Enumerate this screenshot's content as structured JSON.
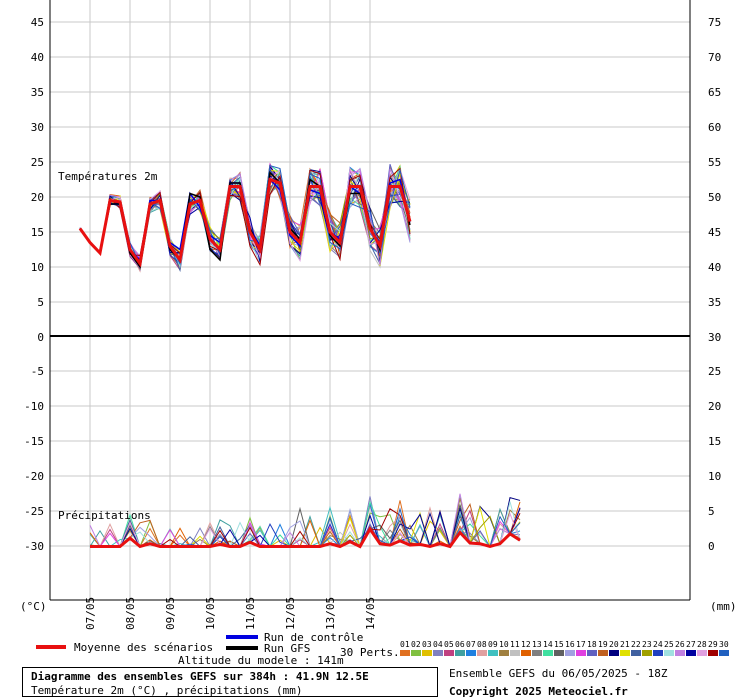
{
  "chart_data": {
    "type": "line",
    "panels": {
      "temperature": {
        "label": "Températures 2m",
        "left_ticks": [
          "45",
          "40",
          "35",
          "30",
          "25",
          "20",
          "15",
          "10",
          "5",
          "0"
        ],
        "right_ticks": [
          "75",
          "70",
          "65",
          "60",
          "55",
          "50",
          "45",
          "40",
          "35",
          "30"
        ],
        "ylim": [
          0,
          47
        ]
      },
      "precipitation": {
        "label": "Précipitations",
        "left_ticks": [
          "-5",
          "-10",
          "-15",
          "-20",
          "-25",
          "-30"
        ],
        "right_ticks": [
          "25",
          "20",
          "15",
          "10",
          "5",
          "0"
        ],
        "ylim": [
          -38,
          0
        ]
      }
    },
    "left_unit": "(°C)",
    "right_unit": "(mm)",
    "x_labels": [
      "07/05",
      "08/05",
      "09/05",
      "10/05",
      "11/05",
      "12/05",
      "13/05",
      "14/05"
    ],
    "x_hours_step": 6,
    "mean_temperature": [
      15.5,
      13.5,
      12,
      19.5,
      19.3,
      12.5,
      10.5,
      19,
      19.5,
      13,
      11,
      19,
      19.5,
      14,
      12.5,
      21.5,
      21.5,
      15,
      12.5,
      22.5,
      22,
      15,
      13.5,
      21.5,
      21.5,
      15,
      13.5,
      21.5,
      21.5,
      15.5,
      13,
      21.5,
      21.5,
      16.5
    ],
    "control_run": [
      15.5,
      13.5,
      12,
      19,
      19,
      12.5,
      11,
      19.5,
      19.5,
      13.5,
      12.5,
      20.5,
      18.5,
      14.5,
      13.5,
      22,
      22,
      15.5,
      13,
      22.5,
      21,
      14.5,
      13,
      21,
      20.5,
      15,
      14,
      21.5,
      20.5,
      15.5,
      13.5,
      22,
      22.5,
      16.5
    ],
    "gfs_run": [
      15.5,
      13.5,
      12,
      19,
      19,
      12,
      10,
      19,
      19.5,
      12.5,
      11,
      20.5,
      20,
      12.5,
      11,
      22,
      22,
      15.5,
      12.5,
      23.5,
      22,
      15.5,
      14,
      22.5,
      21.5,
      14.5,
      13,
      20.5,
      20.5,
      16,
      12.5,
      21.5,
      21.5,
      16
    ],
    "mean_precipitation_mm": [
      0,
      0,
      0,
      0,
      1.2,
      0,
      0.4,
      0,
      0,
      0,
      0,
      0,
      0,
      0.3,
      0,
      0,
      0.6,
      0,
      0,
      0,
      0,
      0,
      0,
      0,
      0.4,
      0,
      0.7,
      0,
      2.5,
      0.4,
      0.2,
      0.8,
      0.2,
      0.3,
      0,
      0.4,
      0,
      2.0,
      0.5,
      0.4,
      0,
      0.4,
      1.8,
      0.9
    ],
    "legend": {
      "mean": "Moyenne des scénarios",
      "control": "Run de contrôle",
      "gfs": "Run GFS",
      "perts": "30 Perts.",
      "altitude": "Altitude du modele : 141m"
    },
    "member_numbers": [
      "01",
      "02",
      "03",
      "04",
      "05",
      "06",
      "07",
      "08",
      "09",
      "10",
      "11",
      "12",
      "13",
      "14",
      "15",
      "16",
      "17",
      "18",
      "19",
      "20",
      "21",
      "22",
      "23",
      "24",
      "25",
      "26",
      "27",
      "28",
      "29",
      "30"
    ],
    "member_colors": [
      "#e07020",
      "#80c040",
      "#e0c000",
      "#8080c0",
      "#c04080",
      "#40a0a0",
      "#2080e0",
      "#e0a0a0",
      "#40c0c0",
      "#a08040",
      "#c0c0c0",
      "#e06000",
      "#808080",
      "#40e0a0",
      "#606060",
      "#a0a0e0",
      "#e040e0",
      "#6060c0",
      "#c06020",
      "#000080",
      "#e0e000",
      "#4060a0",
      "#a0a000",
      "#2040c0",
      "#a0e0e0",
      "#c080e0",
      "#0000a0",
      "#e0a0e0",
      "#a00000",
      "#2060c0"
    ],
    "colors": {
      "mean": "#e81010",
      "control": "#0000e0",
      "gfs": "#000000"
    }
  },
  "footer": {
    "title": "Diagramme des ensembles GEFS sur 384h : 41.9N 12.5E",
    "subtitle": "Température 2m (°C) , précipitations (mm)",
    "run": "Ensemble GEFS du 06/05/2025 - 18Z",
    "copyright": "Copyright 2025 Meteociel.fr"
  }
}
